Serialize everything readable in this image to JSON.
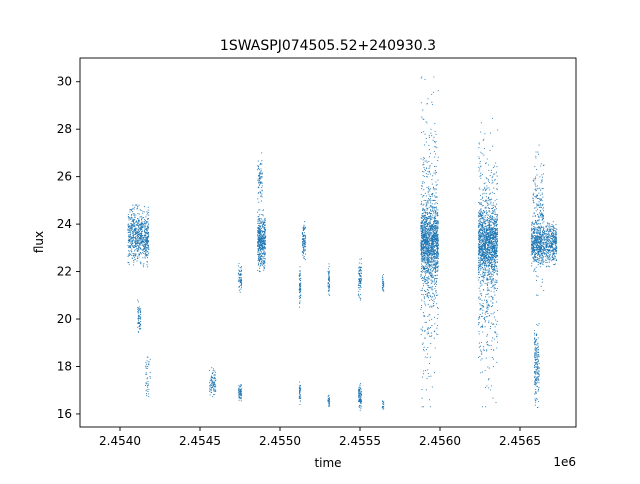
{
  "chart_data": {
    "type": "scatter",
    "title": "1SWASPJ074505.52+240930.3",
    "xlabel": "time",
    "ylabel": "flux",
    "x_offset_label": "1e6",
    "xlim": [
      2.45375,
      2.45685
    ],
    "ylim": [
      15.45,
      31.0
    ],
    "x_ticks": [
      2.454,
      2.4545,
      2.455,
      2.4555,
      2.456,
      2.4565
    ],
    "x_tick_labels": [
      "2.4540",
      "2.4545",
      "2.4550",
      "2.4555",
      "2.4560",
      "2.4565"
    ],
    "y_ticks": [
      16,
      18,
      20,
      22,
      24,
      26,
      28,
      30
    ],
    "y_tick_labels": [
      "16",
      "18",
      "20",
      "22",
      "24",
      "26",
      "28",
      "30"
    ],
    "grid": false,
    "legend": "none",
    "marker_color": "#1f77b4",
    "clusters": [
      {
        "t0": 2.45405,
        "t1": 2.45418,
        "y0": 22.2,
        "y1": 24.8,
        "n": 700
      },
      {
        "t0": 2.45411,
        "t1": 2.45413,
        "y0": 19.3,
        "y1": 20.8,
        "n": 60
      },
      {
        "t0": 2.45416,
        "t1": 2.45419,
        "y0": 16.5,
        "y1": 18.7,
        "n": 40
      },
      {
        "t0": 2.45456,
        "t1": 2.4546,
        "y0": 16.7,
        "y1": 18.0,
        "n": 90
      },
      {
        "t0": 2.45474,
        "t1": 2.45476,
        "y0": 16.4,
        "y1": 17.4,
        "n": 60
      },
      {
        "t0": 2.45474,
        "t1": 2.45476,
        "y0": 21.0,
        "y1": 22.5,
        "n": 60
      },
      {
        "t0": 2.45486,
        "t1": 2.45491,
        "y0": 22.0,
        "y1": 24.6,
        "n": 450
      },
      {
        "t0": 2.45486,
        "t1": 2.45489,
        "y0": 24.6,
        "y1": 27.0,
        "n": 80
      },
      {
        "t0": 2.45512,
        "t1": 2.45513,
        "y0": 20.5,
        "y1": 22.2,
        "n": 60
      },
      {
        "t0": 2.45512,
        "t1": 2.45513,
        "y0": 16.3,
        "y1": 17.4,
        "n": 40
      },
      {
        "t0": 2.45514,
        "t1": 2.45516,
        "y0": 22.5,
        "y1": 24.1,
        "n": 100
      },
      {
        "t0": 2.4553,
        "t1": 2.45531,
        "y0": 20.7,
        "y1": 22.5,
        "n": 50
      },
      {
        "t0": 2.4553,
        "t1": 2.45531,
        "y0": 16.2,
        "y1": 16.9,
        "n": 30
      },
      {
        "t0": 2.45549,
        "t1": 2.45551,
        "y0": 20.8,
        "y1": 22.6,
        "n": 90
      },
      {
        "t0": 2.45549,
        "t1": 2.45551,
        "y0": 16.1,
        "y1": 17.4,
        "n": 90
      },
      {
        "t0": 2.45564,
        "t1": 2.45565,
        "y0": 21.0,
        "y1": 22.0,
        "n": 30
      },
      {
        "t0": 2.45564,
        "t1": 2.45565,
        "y0": 16.2,
        "y1": 16.6,
        "n": 20
      },
      {
        "t0": 2.45588,
        "t1": 2.45599,
        "y0": 21.5,
        "y1": 25.0,
        "n": 1100
      },
      {
        "t0": 2.45588,
        "t1": 2.45599,
        "y0": 16.3,
        "y1": 30.2,
        "n": 550
      },
      {
        "t0": 2.45624,
        "t1": 2.45636,
        "y0": 21.5,
        "y1": 25.0,
        "n": 1100
      },
      {
        "t0": 2.45624,
        "t1": 2.45636,
        "y0": 16.3,
        "y1": 28.8,
        "n": 550
      },
      {
        "t0": 2.45657,
        "t1": 2.45673,
        "y0": 22.2,
        "y1": 24.2,
        "n": 800
      },
      {
        "t0": 2.45658,
        "t1": 2.45665,
        "y0": 21.0,
        "y1": 27.5,
        "n": 250
      },
      {
        "t0": 2.45659,
        "t1": 2.45662,
        "y0": 16.1,
        "y1": 20.0,
        "n": 180
      }
    ]
  }
}
